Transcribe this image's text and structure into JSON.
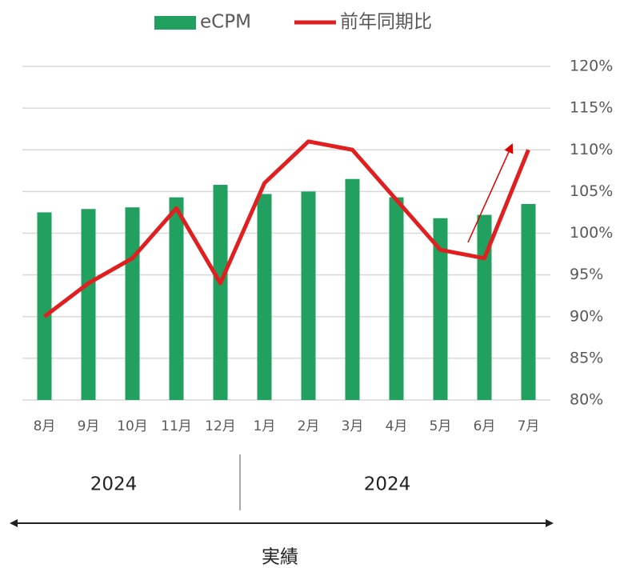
{
  "chart_data": {
    "type": "combo",
    "categories": [
      "8月",
      "9月",
      "10月",
      "11月",
      "12月",
      "1月",
      "2月",
      "3月",
      "4月",
      "5月",
      "6月",
      "7月"
    ],
    "series": [
      {
        "name": "eCPM",
        "type": "bar",
        "color": "#21a060",
        "values": [
          102.5,
          102.9,
          103.1,
          104.3,
          105.8,
          104.7,
          105.0,
          106.5,
          104.3,
          101.8,
          102.2,
          103.5
        ]
      },
      {
        "name": "前年同期比",
        "type": "line",
        "color": "#e02020",
        "values": [
          90,
          94,
          97,
          103,
          94,
          106,
          111,
          110,
          104,
          98,
          97,
          110
        ]
      }
    ],
    "ylim": [
      80,
      120
    ],
    "yticks": [
      {
        "value": 80,
        "label": "80%"
      },
      {
        "value": 85,
        "label": "85%"
      },
      {
        "value": 90,
        "label": "90%"
      },
      {
        "value": 95,
        "label": "95%"
      },
      {
        "value": 100,
        "label": "100%"
      },
      {
        "value": 105,
        "label": "105%"
      },
      {
        "value": 110,
        "label": "110%"
      },
      {
        "value": 115,
        "label": "115%"
      },
      {
        "value": 120,
        "label": "120%"
      }
    ],
    "grid": true,
    "legend": "top"
  },
  "period_labels": [
    "2024",
    "2024"
  ],
  "span_label": "実績"
}
